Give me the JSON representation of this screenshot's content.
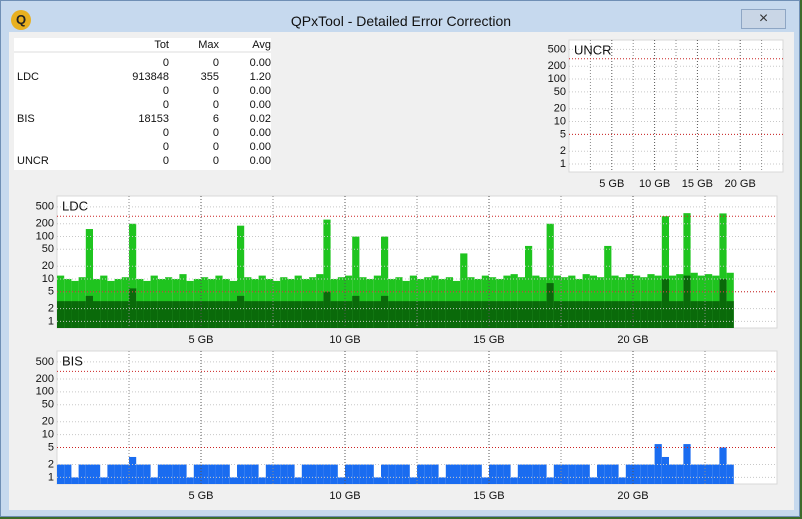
{
  "window": {
    "title": "QPxTool - Detailed Error Correction",
    "close": "×",
    "icon": "Q"
  },
  "table": {
    "headers": [
      "Tot",
      "Max",
      "Avg"
    ],
    "rows": [
      [
        "",
        "0",
        "0",
        "0.00"
      ],
      [
        "LDC",
        "913848",
        "355",
        "1.20"
      ],
      [
        "",
        "0",
        "0",
        "0.00"
      ],
      [
        "",
        "0",
        "0",
        "0.00"
      ],
      [
        "BIS",
        "18153",
        "6",
        "0.02"
      ],
      [
        "",
        "0",
        "0",
        "0.00"
      ],
      [
        "",
        "0",
        "0",
        "0.00"
      ],
      [
        "UNCR",
        "0",
        "0",
        "0.00"
      ]
    ]
  },
  "chart_data": [
    {
      "type": "bar",
      "title": "UNCR",
      "log_y": true,
      "grid": true,
      "xlim": [
        0,
        25
      ],
      "ylim": [
        0.65,
        830
      ],
      "xticks": [
        {
          "value": 5,
          "label": "5 GB"
        },
        {
          "value": 10,
          "label": "10 GB"
        },
        {
          "value": 15,
          "label": "15 GB"
        },
        {
          "value": 20,
          "label": "20 GB"
        }
      ],
      "yticks": [
        1,
        2,
        5,
        10,
        20,
        50,
        100,
        200,
        500
      ],
      "threshold_lines": [
        5,
        300
      ],
      "x": [],
      "series": []
    },
    {
      "type": "bar",
      "title": "LDC",
      "log_y": true,
      "grid": true,
      "xlim": [
        0,
        25
      ],
      "ylim": [
        0.7,
        900
      ],
      "xticks": [
        {
          "value": 5,
          "label": "5 GB"
        },
        {
          "value": 10,
          "label": "10 GB"
        },
        {
          "value": 15,
          "label": "15 GB"
        },
        {
          "value": 20,
          "label": "20 GB"
        }
      ],
      "yticks": [
        1,
        2,
        5,
        10,
        20,
        50,
        100,
        200,
        500
      ],
      "threshold_lines": [
        5,
        300
      ],
      "x": [
        0,
        0.25,
        0.5,
        0.75,
        1,
        1.25,
        1.5,
        1.75,
        2,
        2.25,
        2.5,
        2.75,
        3,
        3.25,
        3.5,
        3.75,
        4,
        4.25,
        4.5,
        4.75,
        5,
        5.25,
        5.5,
        5.75,
        6,
        6.25,
        6.5,
        6.75,
        7,
        7.25,
        7.5,
        7.75,
        8,
        8.25,
        8.5,
        8.75,
        9,
        9.25,
        9.5,
        9.75,
        10,
        10.25,
        10.5,
        10.75,
        11,
        11.25,
        11.5,
        11.75,
        12,
        12.25,
        12.5,
        12.75,
        13,
        13.25,
        13.5,
        13.75,
        14,
        14.25,
        14.5,
        14.75,
        15,
        15.25,
        15.5,
        15.75,
        16,
        16.25,
        16.5,
        16.75,
        17,
        17.25,
        17.5,
        17.75,
        18,
        18.25,
        18.5,
        18.75,
        19,
        19.25,
        19.5,
        19.75,
        20,
        20.25,
        20.5,
        20.75,
        21,
        21.25,
        21.5,
        21.75,
        22,
        22.25,
        22.5,
        22.75,
        23,
        23.25
      ],
      "series": [
        {
          "color": "#1fc41f",
          "values": [
            12,
            10,
            9,
            11,
            150,
            10,
            12,
            9,
            10,
            11,
            200,
            10,
            9,
            12,
            10,
            11,
            10,
            13,
            9,
            10,
            11,
            10,
            12,
            10,
            9,
            180,
            11,
            10,
            12,
            10,
            9,
            11,
            10,
            12,
            10,
            11,
            13,
            250,
            10,
            11,
            12,
            100,
            11,
            10,
            12,
            100,
            10,
            11,
            9,
            12,
            10,
            11,
            12,
            10,
            11,
            9,
            40,
            11,
            10,
            12,
            11,
            10,
            12,
            13,
            11,
            60,
            12,
            11,
            200,
            12,
            11,
            12,
            10,
            13,
            12,
            11,
            60,
            12,
            11,
            13,
            12,
            11,
            13,
            12,
            300,
            12,
            13,
            355,
            14,
            12,
            13,
            12,
            350,
            14
          ]
        },
        {
          "color": "#0a6a0a",
          "values": [
            3,
            3,
            3,
            3,
            4,
            3,
            3,
            3,
            3,
            3,
            6,
            3,
            3,
            3,
            3,
            3,
            3,
            3,
            3,
            3,
            3,
            3,
            3,
            3,
            3,
            4,
            3,
            3,
            3,
            3,
            3,
            3,
            3,
            3,
            3,
            3,
            3,
            5,
            3,
            3,
            3,
            4,
            3,
            3,
            3,
            4,
            3,
            3,
            3,
            3,
            3,
            3,
            3,
            3,
            3,
            3,
            3,
            3,
            3,
            3,
            3,
            3,
            3,
            3,
            3,
            3,
            3,
            3,
            8,
            3,
            3,
            3,
            3,
            3,
            3,
            3,
            3,
            3,
            3,
            3,
            3,
            3,
            3,
            3,
            10,
            3,
            3,
            12,
            3,
            3,
            3,
            3,
            10,
            3
          ]
        }
      ]
    },
    {
      "type": "bar",
      "title": "BIS",
      "log_y": true,
      "grid": true,
      "xlim": [
        0,
        25
      ],
      "ylim": [
        0.7,
        900
      ],
      "xticks": [
        {
          "value": 5,
          "label": "5 GB"
        },
        {
          "value": 10,
          "label": "10 GB"
        },
        {
          "value": 15,
          "label": "15 GB"
        },
        {
          "value": 20,
          "label": "20 GB"
        }
      ],
      "yticks": [
        1,
        2,
        5,
        10,
        20,
        50,
        100,
        200,
        500
      ],
      "threshold_lines": [
        5,
        300
      ],
      "x": [
        0,
        0.25,
        0.5,
        0.75,
        1,
        1.25,
        1.5,
        1.75,
        2,
        2.25,
        2.5,
        2.75,
        3,
        3.25,
        3.5,
        3.75,
        4,
        4.25,
        4.5,
        4.75,
        5,
        5.25,
        5.5,
        5.75,
        6,
        6.25,
        6.5,
        6.75,
        7,
        7.25,
        7.5,
        7.75,
        8,
        8.25,
        8.5,
        8.75,
        9,
        9.25,
        9.5,
        9.75,
        10,
        10.25,
        10.5,
        10.75,
        11,
        11.25,
        11.5,
        11.75,
        12,
        12.25,
        12.5,
        12.75,
        13,
        13.25,
        13.5,
        13.75,
        14,
        14.25,
        14.5,
        14.75,
        15,
        15.25,
        15.5,
        15.75,
        16,
        16.25,
        16.5,
        16.75,
        17,
        17.25,
        17.5,
        17.75,
        18,
        18.25,
        18.5,
        18.75,
        19,
        19.25,
        19.5,
        19.75,
        20,
        20.25,
        20.5,
        20.75,
        21,
        21.25,
        21.5,
        21.75,
        22,
        22.25,
        22.5,
        22.75,
        23,
        23.25
      ],
      "series": [
        {
          "color": "#1a6cf0",
          "values": [
            2,
            2,
            1,
            2,
            2,
            2,
            1,
            2,
            2,
            2,
            3,
            2,
            2,
            1,
            2,
            2,
            2,
            2,
            1,
            2,
            2,
            2,
            2,
            2,
            1,
            2,
            2,
            2,
            1,
            2,
            2,
            2,
            2,
            1,
            2,
            2,
            2,
            2,
            2,
            1,
            2,
            2,
            2,
            2,
            1,
            2,
            2,
            2,
            2,
            1,
            2,
            2,
            2,
            1,
            2,
            2,
            2,
            2,
            2,
            1,
            2,
            2,
            2,
            1,
            2,
            2,
            2,
            2,
            1,
            2,
            2,
            2,
            2,
            2,
            1,
            2,
            2,
            2,
            1,
            2,
            2,
            2,
            2,
            6,
            3,
            2,
            2,
            6,
            2,
            2,
            2,
            2,
            5,
            2
          ]
        }
      ]
    }
  ]
}
